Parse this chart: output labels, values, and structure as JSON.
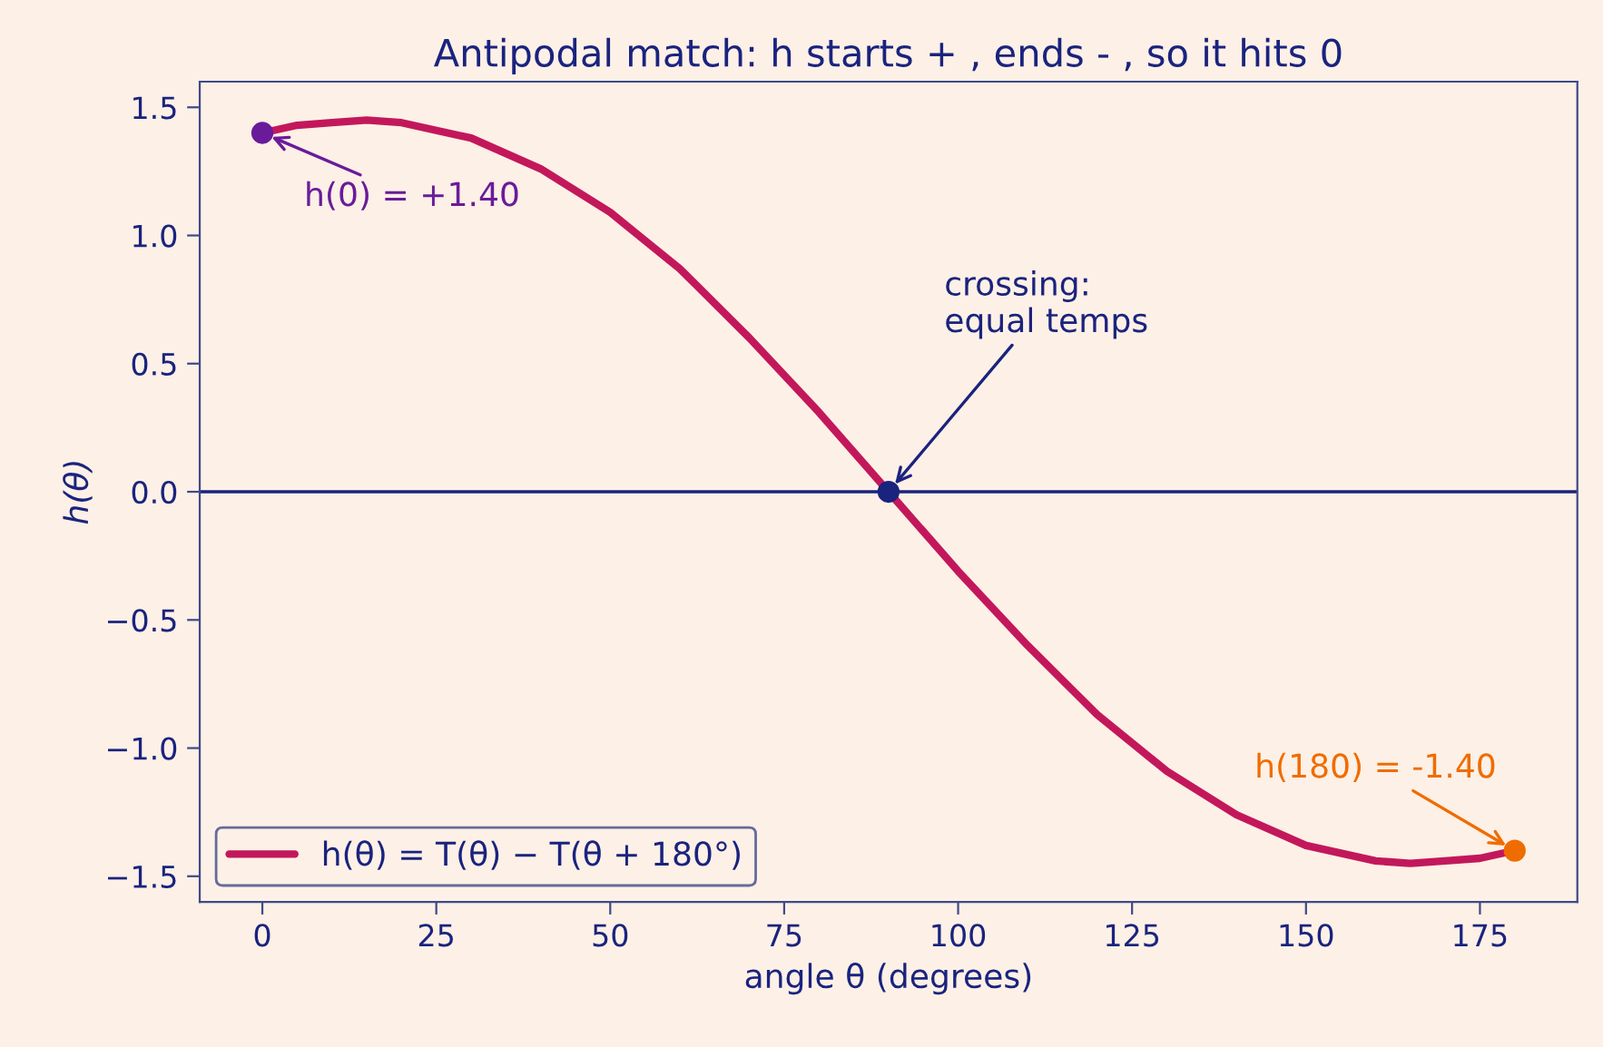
{
  "chart_data": {
    "type": "line",
    "title": "Antipodal match: h starts + , ends - , so it hits 0",
    "xlabel": "angle θ (degrees)",
    "ylabel": "h(θ)",
    "series": [
      {
        "name": "h(θ) = T(θ) − T(θ + 180°)",
        "color": "#c2185b",
        "x": [
          0,
          5,
          10,
          15,
          20,
          30,
          40,
          50,
          60,
          70,
          80,
          90,
          100,
          110,
          120,
          130,
          140,
          150,
          160,
          165,
          170,
          175,
          180
        ],
        "values": [
          1.4,
          1.43,
          1.44,
          1.45,
          1.44,
          1.38,
          1.26,
          1.09,
          0.87,
          0.6,
          0.31,
          0.0,
          -0.31,
          -0.6,
          -0.87,
          -1.09,
          -1.26,
          -1.38,
          -1.44,
          -1.45,
          -1.44,
          -1.43,
          -1.4
        ]
      },
      {
        "type": "scatter",
        "x": [
          0,
          90,
          180
        ],
        "values": [
          1.4,
          0.0,
          -1.4
        ],
        "colors": [
          "#6a1b9a",
          "#1a237e",
          "#ef6c00"
        ],
        "marker": "circle"
      }
    ],
    "annotations": [
      {
        "text": "h(0) = +1.40",
        "x": 0,
        "y": 1.4
      },
      {
        "text": "crossing:\nequal temps",
        "x": 90,
        "y": 0.0
      },
      {
        "text": "h(180) = -1.40",
        "x": 180,
        "y": -1.4
      }
    ],
    "ref_lines": [
      {
        "axis": "y",
        "value": 0,
        "color": "#1a237e"
      }
    ],
    "xlim": [
      -9,
      189
    ],
    "ylim": [
      -1.6,
      1.6
    ],
    "xticks": [
      0,
      25,
      50,
      75,
      100,
      125,
      150,
      175
    ],
    "yticks": [
      {
        "value": -1.5,
        "label": "−1.5"
      },
      {
        "value": -1.0,
        "label": "−1.0"
      },
      {
        "value": -0.5,
        "label": "−0.5"
      },
      {
        "value": 0.0,
        "label": "0.0"
      },
      {
        "value": 0.5,
        "label": "0.5"
      },
      {
        "value": 1.0,
        "label": "1.0"
      },
      {
        "value": 1.5,
        "label": "1.5"
      }
    ],
    "legend": "bottom left",
    "grid": false
  }
}
